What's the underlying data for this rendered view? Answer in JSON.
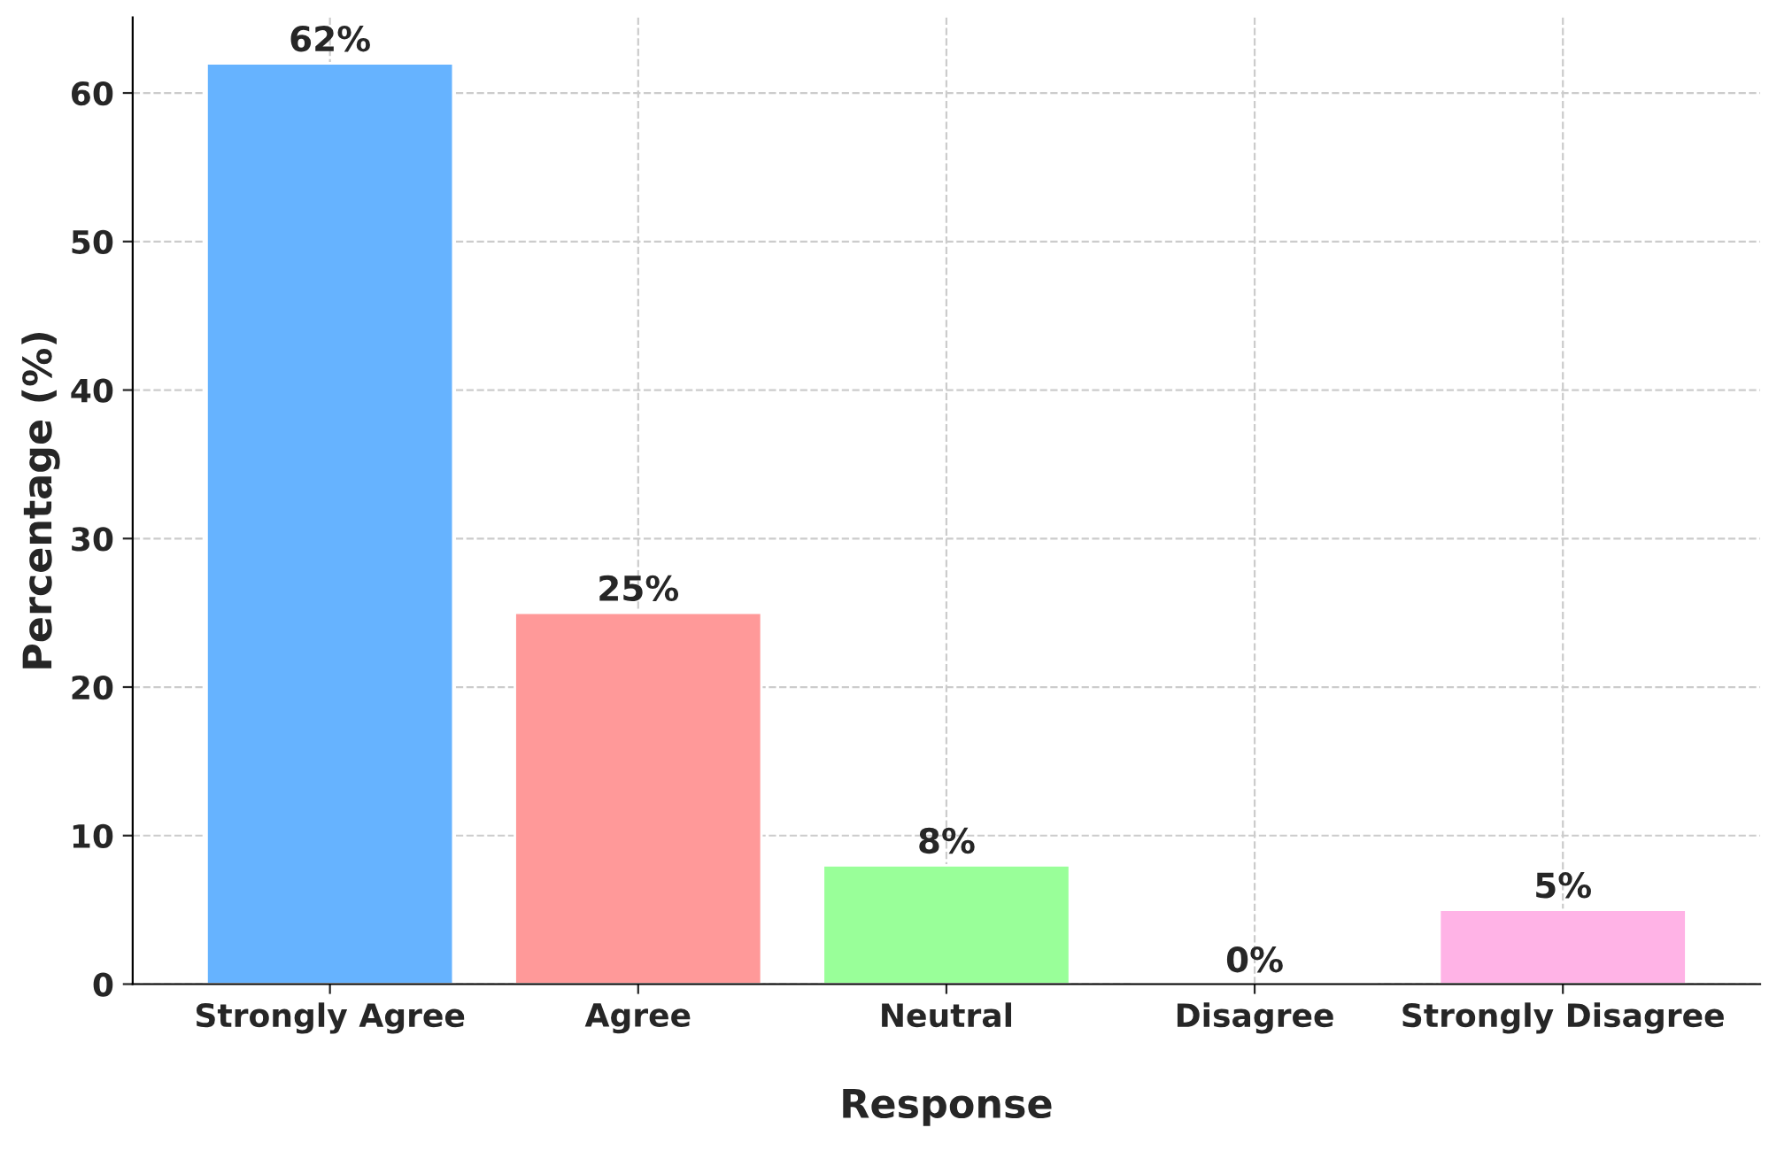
{
  "chart_data": {
    "type": "bar",
    "xlabel": "Response",
    "ylabel": "Percentage (%)",
    "categories": [
      "Strongly Agree",
      "Agree",
      "Neutral",
      "Disagree",
      "Strongly Disagree"
    ],
    "values": [
      62,
      25,
      8,
      0,
      5
    ],
    "colors": [
      "#66b3ff",
      "#ff9999",
      "#99ff99",
      null,
      "#ffb3e6"
    ],
    "value_labels": [
      "62%",
      "25%",
      "8%",
      "0%",
      "5%"
    ],
    "ylim": [
      0,
      65.1
    ],
    "yticks": [
      0,
      10,
      20,
      30,
      40,
      50,
      60
    ],
    "grid": true,
    "legend": false
  }
}
